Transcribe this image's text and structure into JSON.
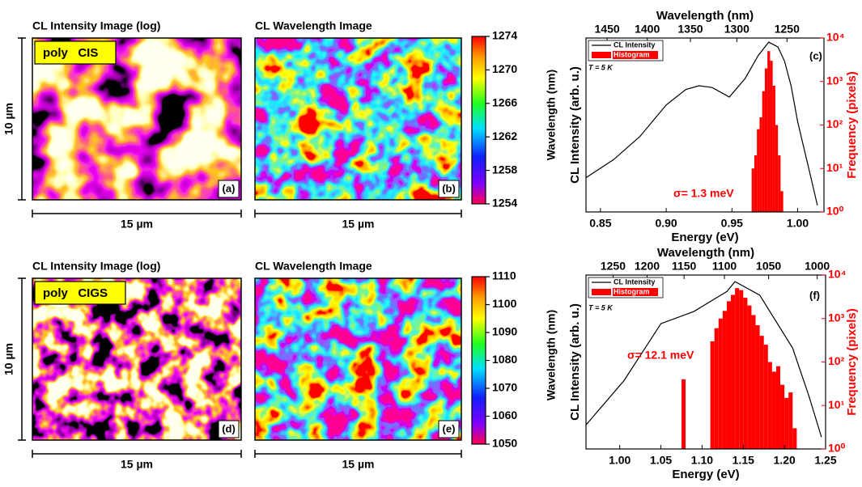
{
  "rows": [
    {
      "intensity_title": "CL Intensity Image (log)",
      "sample_label": "poly   CIS",
      "intensity_panel": "(a)",
      "wavelength_title": "CL Wavelength Image",
      "wavelength_panel": "(b)",
      "scale_y": "10 µm",
      "scale_x": "15 µm",
      "colorbar": {
        "label": "Wavelength (nm)",
        "lim": [
          1254,
          1274
        ],
        "ticks": [
          1254,
          1258,
          1262,
          1266,
          1270,
          1274
        ]
      }
    },
    {
      "intensity_title": "CL Intensity Image (log)",
      "sample_label": "poly   CIGS",
      "intensity_panel": "(d)",
      "wavelength_title": "CL Wavelength Image",
      "wavelength_panel": "(e)",
      "scale_y": "10 µm",
      "scale_x": "15 µm",
      "colorbar": {
        "label": "Wavelength (nm)",
        "lim": [
          1050,
          1110
        ],
        "ticks": [
          1050,
          1060,
          1070,
          1080,
          1090,
          1100,
          1110
        ]
      }
    }
  ],
  "chart_data": [
    {
      "type": "combo",
      "x_label": "Energy (eV)",
      "x2_label": "Wavelength (nm)",
      "y_label": "CL Intensity (arb. u.)",
      "y2_label": "Frequency (pixels)",
      "xlim": [
        0.839,
        1.02
      ],
      "xticks": [
        0.85,
        {
          "value": 0.9,
          "label": "0.90"
        },
        0.95,
        {
          "value": 1.0,
          "label": "1.00"
        }
      ],
      "x2ticks": [
        1450,
        1400,
        1350,
        1300,
        1250
      ],
      "ylim": [
        1,
        1000
      ],
      "ylog": true,
      "y2lim": [
        1,
        10000
      ],
      "y2log": true,
      "y2ticks": [
        {
          "value": 1,
          "label": "10⁰"
        },
        {
          "value": 10,
          "label": "10¹"
        },
        {
          "value": 100,
          "label": "10²"
        },
        {
          "value": 1000,
          "label": "10³"
        },
        {
          "value": 10000,
          "label": "10⁴"
        }
      ],
      "legend": "upper left",
      "series": [
        {
          "name": "CL Intensity",
          "type": "line",
          "color": "#000000",
          "x": [
            0.839,
            0.86,
            0.88,
            0.9,
            0.915,
            0.925,
            0.935,
            0.948,
            0.96,
            0.97,
            0.978,
            0.985,
            0.99,
            0.995,
            1.0,
            1.01,
            1.015
          ],
          "values": [
            3.9,
            8,
            20,
            70,
            130,
            150,
            140,
            96,
            200,
            500,
            850,
            700,
            400,
            150,
            36,
            4,
            1.3
          ]
        },
        {
          "name": "Histogram",
          "type": "histogram",
          "axis": "y2",
          "color": "#ff0000",
          "bins": [
            0.965,
            0.967,
            0.969,
            0.971,
            0.973,
            0.975,
            0.977,
            0.979,
            0.981,
            0.983,
            0.985,
            0.987,
            0.989
          ],
          "values": [
            10,
            20,
            80,
            150,
            600,
            2000,
            5000,
            3000,
            800,
            100,
            20,
            3
          ]
        }
      ],
      "annotations": [
        "σ= 1.3 meV",
        "(c)",
        "T = 5 K"
      ]
    },
    {
      "type": "combo",
      "x_label": "Energy (eV)",
      "x2_label": "Wavelength (nm)",
      "y_label": "CL Intensity (arb. u.)",
      "y2_label": "Frequency (pixels)",
      "xlim": [
        0.959,
        1.25
      ],
      "xticks": [
        {
          "value": 1.0,
          "label": "1.00"
        },
        1.05,
        {
          "value": 1.1,
          "label": "1.10"
        },
        1.15,
        {
          "value": 1.2,
          "label": "1.20"
        },
        1.25
      ],
      "x2ticks": [
        1250,
        1200,
        1150,
        1100,
        1050,
        1000
      ],
      "ylim": [
        1,
        1000
      ],
      "ylog": true,
      "y2lim": [
        1,
        10000
      ],
      "y2log": true,
      "y2ticks": [
        {
          "value": 1,
          "label": "10⁰"
        },
        {
          "value": 10,
          "label": "10¹"
        },
        {
          "value": 100,
          "label": "10²"
        },
        {
          "value": 1000,
          "label": "10³"
        },
        {
          "value": 10000,
          "label": "10⁴"
        }
      ],
      "legend": "upper left",
      "series": [
        {
          "name": "CL Intensity",
          "type": "line",
          "color": "#000000",
          "x": [
            0.959,
            1.005,
            1.05,
            1.09,
            1.13,
            1.14,
            1.17,
            1.21,
            1.23,
            1.245
          ],
          "values": [
            2.6,
            15,
            145,
            235,
            520,
            770,
            450,
            55,
            8,
            1.6
          ]
        },
        {
          "name": "Histogram",
          "type": "histogram",
          "axis": "y2",
          "color": "#ff0000",
          "bins": [
            1.075,
            1.08,
            1.085,
            1.09,
            1.095,
            1.1,
            1.105,
            1.11,
            1.115,
            1.12,
            1.125,
            1.13,
            1.135,
            1.14,
            1.145,
            1.15,
            1.155,
            1.16,
            1.165,
            1.17,
            1.175,
            1.18,
            1.185,
            1.19,
            1.195,
            1.2,
            1.205,
            1.21,
            1.215
          ],
          "values": [
            40,
            1,
            1,
            1,
            1,
            1,
            1,
            300,
            600,
            1000,
            1500,
            2500,
            3500,
            5000,
            4500,
            3000,
            2000,
            1200,
            700,
            400,
            250,
            100,
            60,
            80,
            30,
            15,
            20,
            3
          ]
        }
      ],
      "annotations": [
        "σ= 12.1 meV",
        "(f)",
        "T = 5 K"
      ]
    }
  ]
}
